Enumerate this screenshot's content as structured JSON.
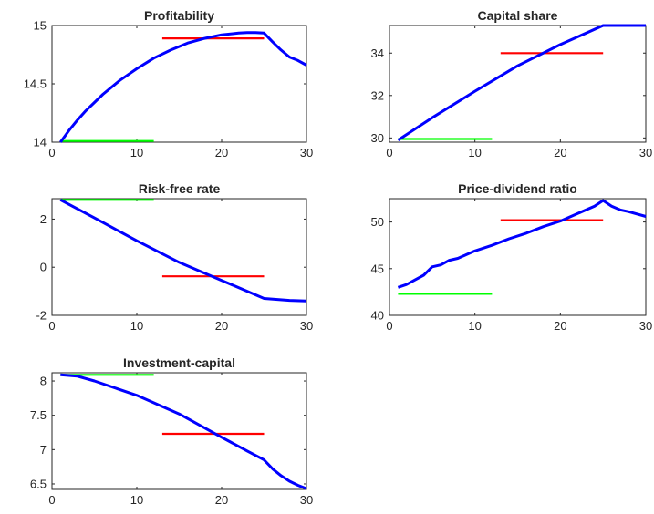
{
  "figure": {
    "series_colors": {
      "path": "#0000ff",
      "before": "#00ff00",
      "after": "#ff0000"
    }
  },
  "chart_data": [
    {
      "type": "line",
      "title": "Profitability",
      "xlabel": "",
      "ylabel": "",
      "xlim": [
        0,
        30
      ],
      "ylim": [
        14,
        15
      ],
      "xticks": [
        0,
        10,
        20,
        30
      ],
      "yticks": [
        14,
        14.5,
        15
      ],
      "xtick_labels": [
        "0",
        "10",
        "20",
        "30"
      ],
      "ytick_labels": [
        "14",
        "14.5",
        "15"
      ],
      "grid": false,
      "series": [
        {
          "role": "path",
          "color": "#0000ff",
          "x": [
            1,
            2,
            3,
            4,
            5,
            6,
            8,
            10,
            12,
            14,
            16,
            18,
            20,
            22,
            23,
            24,
            25,
            26,
            27,
            28,
            29,
            30
          ],
          "y": [
            14.0,
            14.1,
            14.19,
            14.27,
            14.34,
            14.41,
            14.53,
            14.63,
            14.72,
            14.79,
            14.85,
            14.89,
            14.92,
            14.935,
            14.94,
            14.94,
            14.935,
            14.86,
            14.79,
            14.73,
            14.7,
            14.66
          ]
        },
        {
          "role": "before",
          "color": "#00ff00",
          "x": [
            1,
            12
          ],
          "y": [
            14.01,
            14.01
          ]
        },
        {
          "role": "after",
          "color": "#ff0000",
          "x": [
            13,
            25
          ],
          "y": [
            14.89,
            14.89
          ]
        }
      ]
    },
    {
      "type": "line",
      "title": "Capital share",
      "xlabel": "",
      "ylabel": "",
      "xlim": [
        0,
        30
      ],
      "ylim": [
        29.8,
        35.3
      ],
      "xticks": [
        0,
        10,
        20,
        30
      ],
      "yticks": [
        30,
        32,
        34
      ],
      "xtick_labels": [
        "0",
        "10",
        "20",
        "30"
      ],
      "ytick_labels": [
        "30",
        "32",
        "34"
      ],
      "grid": false,
      "series": [
        {
          "role": "path",
          "color": "#0000ff",
          "x": [
            1,
            5,
            10,
            15,
            20,
            25,
            30
          ],
          "y": [
            29.9,
            30.95,
            32.2,
            33.4,
            34.4,
            35.3,
            35.3
          ]
        },
        {
          "role": "before",
          "color": "#00ff00",
          "x": [
            1,
            12
          ],
          "y": [
            29.95,
            29.95
          ]
        },
        {
          "role": "after",
          "color": "#ff0000",
          "x": [
            13,
            25
          ],
          "y": [
            34.0,
            34.0
          ]
        }
      ]
    },
    {
      "type": "line",
      "title": "Risk-free rate",
      "xlabel": "",
      "ylabel": "",
      "xlim": [
        0,
        30
      ],
      "ylim": [
        -2,
        2.85
      ],
      "xticks": [
        0,
        10,
        20,
        30
      ],
      "yticks": [
        -2,
        0,
        2
      ],
      "xtick_labels": [
        "0",
        "10",
        "20",
        "30"
      ],
      "ytick_labels": [
        "-2",
        "0",
        "2"
      ],
      "grid": false,
      "series": [
        {
          "role": "path",
          "color": "#0000ff",
          "x": [
            1,
            5,
            10,
            15,
            20,
            25,
            28,
            30
          ],
          "y": [
            2.8,
            2.05,
            1.1,
            0.2,
            -0.55,
            -1.3,
            -1.38,
            -1.4
          ]
        },
        {
          "role": "before",
          "color": "#00ff00",
          "x": [
            1,
            12
          ],
          "y": [
            2.8,
            2.8
          ]
        },
        {
          "role": "after",
          "color": "#ff0000",
          "x": [
            13,
            25
          ],
          "y": [
            -0.38,
            -0.38
          ]
        }
      ]
    },
    {
      "type": "line",
      "title": "Price-dividend ratio",
      "xlabel": "",
      "ylabel": "",
      "xlim": [
        0,
        30
      ],
      "ylim": [
        40,
        52.5
      ],
      "xticks": [
        0,
        10,
        20,
        30
      ],
      "yticks": [
        40,
        45,
        50
      ],
      "xtick_labels": [
        "0",
        "10",
        "20",
        "30"
      ],
      "ytick_labels": [
        "40",
        "45",
        "50"
      ],
      "grid": false,
      "series": [
        {
          "role": "path",
          "color": "#0000ff",
          "x": [
            1,
            2,
            3,
            4,
            5,
            6,
            7,
            8,
            9,
            10,
            12,
            14,
            16,
            18,
            20,
            22,
            24,
            25,
            26,
            27,
            28,
            30
          ],
          "y": [
            43.0,
            43.3,
            43.8,
            44.3,
            45.2,
            45.4,
            45.9,
            46.1,
            46.5,
            46.9,
            47.5,
            48.2,
            48.8,
            49.5,
            50.1,
            50.9,
            51.7,
            52.3,
            51.7,
            51.3,
            51.1,
            50.6
          ]
        },
        {
          "role": "before",
          "color": "#00ff00",
          "x": [
            1,
            12
          ],
          "y": [
            42.3,
            42.3
          ]
        },
        {
          "role": "after",
          "color": "#ff0000",
          "x": [
            13,
            25
          ],
          "y": [
            50.2,
            50.2
          ]
        }
      ]
    },
    {
      "type": "line",
      "title": "Investment-capital",
      "xlabel": "",
      "ylabel": "",
      "xlim": [
        0,
        30
      ],
      "ylim": [
        6.42,
        8.12
      ],
      "xticks": [
        0,
        10,
        20,
        30
      ],
      "yticks": [
        6.5,
        7,
        7.5,
        8
      ],
      "xtick_labels": [
        "0",
        "10",
        "20",
        "30"
      ],
      "ytick_labels": [
        "6.5",
        "7",
        "7.5",
        "8"
      ],
      "grid": false,
      "series": [
        {
          "role": "path",
          "color": "#0000ff",
          "x": [
            1,
            3,
            5,
            10,
            15,
            20,
            23,
            25,
            26,
            27,
            28,
            29,
            30
          ],
          "y": [
            8.09,
            8.07,
            8.0,
            7.79,
            7.52,
            7.18,
            6.98,
            6.85,
            6.72,
            6.62,
            6.54,
            6.48,
            6.43
          ]
        },
        {
          "role": "before",
          "color": "#00ff00",
          "x": [
            1,
            12
          ],
          "y": [
            8.09,
            8.09
          ]
        },
        {
          "role": "after",
          "color": "#ff0000",
          "x": [
            13,
            25
          ],
          "y": [
            7.23,
            7.23
          ]
        }
      ]
    }
  ]
}
